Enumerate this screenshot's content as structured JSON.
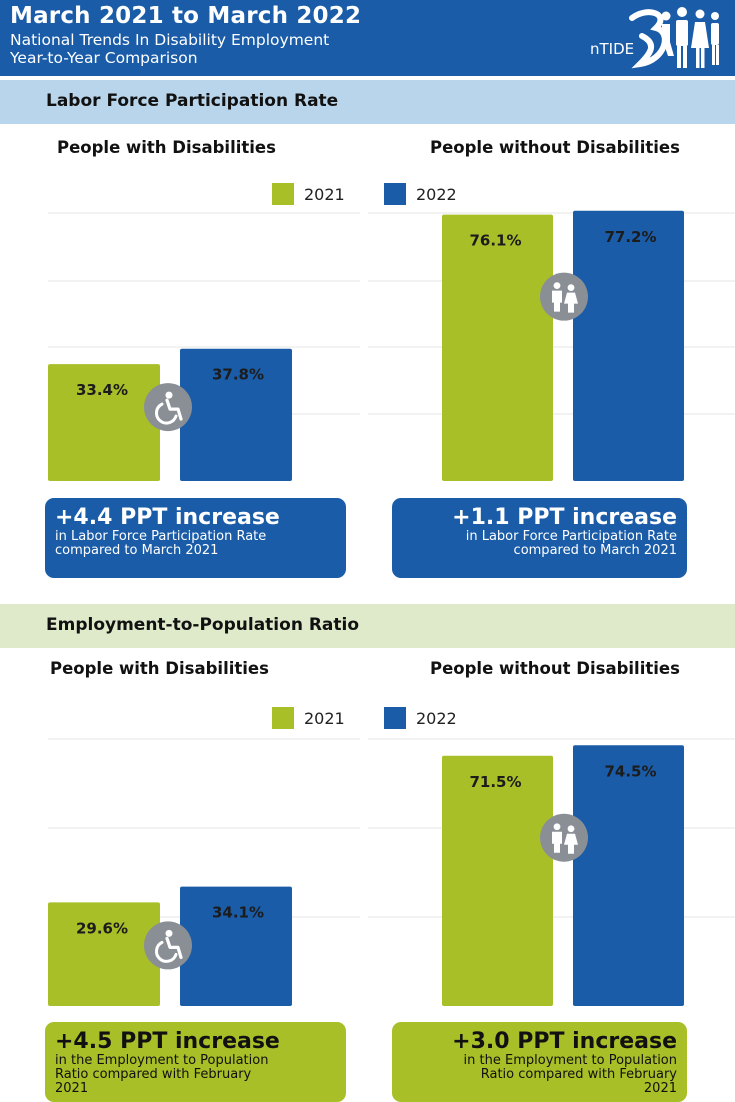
{
  "header": {
    "title": "March 2021 to March 2022",
    "subtitle_line1": "National Trends In Disability Employment",
    "subtitle_line2": "Year-to-Year Comparison",
    "logo_text": "nTIDE",
    "color": "#1a5ca8"
  },
  "colors": {
    "y2021": "#a8bf28",
    "y2022": "#1a5ca8",
    "icon_bg": "#8a8f96"
  },
  "legend": {
    "label_2021": "2021",
    "label_2022": "2022"
  },
  "sections": [
    {
      "title": "Labor Force Participation Rate",
      "groups": [
        {
          "title": "People with Disabilities",
          "icon": "wheelchair-icon",
          "callout": {
            "big": "+4.4 PPT increase",
            "line1": "in Labor Force Participation Rate",
            "line2": "compared to March 2021",
            "line3": ""
          }
        },
        {
          "title": "People without Disabilities",
          "icon": "people-icon",
          "callout": {
            "big": "+1.1 PPT increase",
            "line1": "in Labor Force Participation Rate",
            "line2": "compared to March 2021",
            "line3": ""
          }
        }
      ]
    },
    {
      "title": "Employment-to-Population Ratio",
      "groups": [
        {
          "title": "People with Disabilities",
          "icon": "wheelchair-icon",
          "callout": {
            "big": "+4.5 PPT increase",
            "line1": "in the Employment to Population",
            "line2": "Ratio compared with February",
            "line3": "2021"
          }
        },
        {
          "title": "People without Disabilities",
          "icon": "people-icon",
          "callout": {
            "big": "+3.0 PPT increase",
            "line1": "in the Employment to Population",
            "line2": "Ratio compared with February",
            "line3": "2021"
          }
        }
      ]
    }
  ],
  "chart_data": [
    {
      "type": "bar",
      "title": "Labor Force Participation Rate",
      "categories": [
        "People with Disabilities",
        "People without Disabilities"
      ],
      "series": [
        {
          "name": "2021",
          "values": [
            33.4,
            76.1
          ],
          "labels": [
            "33.4%",
            "76.1%"
          ]
        },
        {
          "name": "2022",
          "values": [
            37.8,
            77.2
          ],
          "labels": [
            "37.8%",
            "77.2%"
          ]
        }
      ],
      "ylim": [
        0,
        80
      ],
      "grid": true,
      "legend": "top"
    },
    {
      "type": "bar",
      "title": "Employment-to-Population Ratio",
      "categories": [
        "People with Disabilities",
        "People without Disabilities"
      ],
      "series": [
        {
          "name": "2021",
          "values": [
            29.6,
            71.5
          ],
          "labels": [
            "29.6%",
            "71.5%"
          ]
        },
        {
          "name": "2022",
          "values": [
            34.1,
            74.5
          ],
          "labels": [
            "34.1%",
            "74.5%"
          ]
        }
      ],
      "ylim": [
        0,
        76
      ],
      "grid": true,
      "legend": "top"
    }
  ]
}
